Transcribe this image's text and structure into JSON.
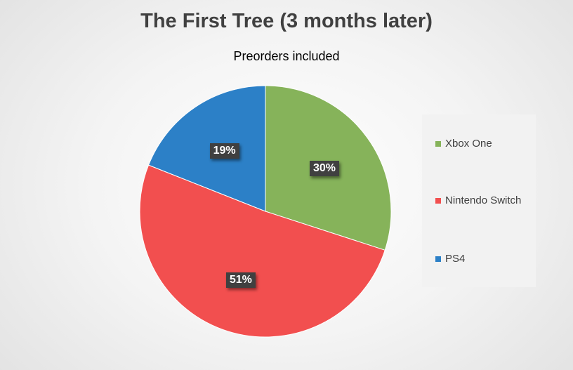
{
  "chart_data": {
    "type": "pie",
    "title": "The First Tree (3 months later)",
    "subtitle": "Preorders included",
    "legend_placement": "right",
    "slices": [
      {
        "name": "Xbox One",
        "value": 30,
        "label": "30%",
        "color": "#86b35a"
      },
      {
        "name": "Nintendo Switch",
        "value": 51,
        "label": "51%",
        "color": "#f24f4f"
      },
      {
        "name": "PS4",
        "value": 19,
        "label": "19%",
        "color": "#2c80c7"
      }
    ]
  }
}
